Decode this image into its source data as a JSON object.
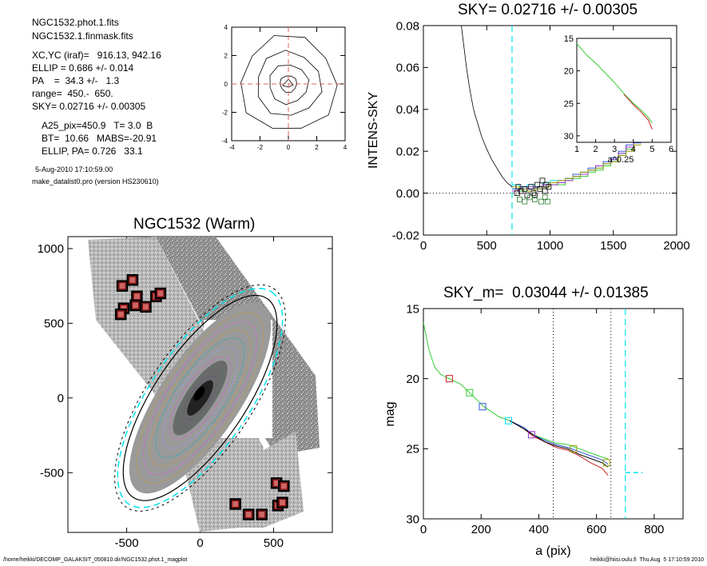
{
  "info": {
    "lines": [
      "NGC1532.phot.1.fits",
      "NGC1532.1.finmask.fits",
      "XC,YC (iraf)=   916.13, 942.16",
      "ELLIP = 0.686 +/- 0.014",
      "PA    =  34.3 +/-   1.3",
      "range=  450.-  650.",
      "SKY= 0.02716 +/- 0.00305",
      "A25_pix=450.9   T= 3.0  B",
      "BT=  10.66   MABS=-20.91",
      "ELLIP, PA= 0.726   33.1"
    ],
    "timestamp": "5-Aug-2010 17:10:59.00",
    "program": "make_datalist0.pro (version HS230610)"
  },
  "footer": {
    "left": "/home/heikki/DECOMP_GALAKSIT_050810.dir/NGC1532.phot.1_magplot",
    "right": "heikki@hiisi.oulu.fi  Thu Aug  5 17:10:59 2010"
  },
  "colors": {
    "cyan": "#00e5ee",
    "red": "#cc2020",
    "green": "#33cc33",
    "blue": "#3355dd",
    "purple": "#9933cc",
    "olive": "#999900",
    "maskbox": "#8b0000"
  },
  "chart_data": [
    {
      "id": "contour",
      "type": "contour",
      "xlim": [
        -4,
        4
      ],
      "ylim": [
        -4,
        4
      ],
      "xticks": [
        "-4",
        "-2",
        "0",
        "2",
        "4"
      ],
      "yticks": [
        "-4",
        "-2",
        "0",
        "2",
        "4"
      ],
      "contour_radii": [
        0.6,
        1.4,
        2.3,
        3.4
      ]
    },
    {
      "id": "sky",
      "type": "line",
      "title": "SKY= 0.02716 +/- 0.00305",
      "ylabel": "INTENS-SKY",
      "xlim": [
        0,
        2000
      ],
      "ylim": [
        -0.02,
        0.08
      ],
      "xticks": [
        "0",
        "500",
        "1000",
        "1500",
        "2000"
      ],
      "yticks": [
        "-0.02",
        "0.00",
        "0.02",
        "0.04",
        "0.06",
        "0.08"
      ],
      "vline_x": 700,
      "profile": [
        [
          300,
          0.08
        ],
        [
          320,
          0.07
        ],
        [
          340,
          0.06
        ],
        [
          360,
          0.052
        ],
        [
          380,
          0.045
        ],
        [
          400,
          0.039
        ],
        [
          430,
          0.033
        ],
        [
          460,
          0.027
        ],
        [
          500,
          0.021
        ],
        [
          540,
          0.016
        ],
        [
          580,
          0.012
        ],
        [
          620,
          0.008
        ],
        [
          660,
          0.005
        ],
        [
          700,
          0.003
        ]
      ],
      "steps_x": [
        700,
        760,
        820,
        880,
        940,
        1000,
        1060,
        1120,
        1180,
        1240,
        1300,
        1360,
        1420,
        1480,
        1540,
        1600,
        1660,
        1720
      ],
      "steps": [
        {
          "color": "#00e5ee",
          "y": [
            0.004,
            0.003,
            0.004,
            0.003,
            0.005,
            0.006,
            0.005,
            0.007,
            0.008,
            0.009,
            0.011,
            0.012,
            0.014,
            0.016,
            0.019,
            0.022,
            0.026
          ]
        },
        {
          "color": "#33cc33",
          "y": [
            0.002,
            0.001,
            0.002,
            0.002,
            0.003,
            0.004,
            0.004,
            0.006,
            0.007,
            0.008,
            0.01,
            0.011,
            0.013,
            0.015,
            0.018,
            0.021,
            0.028
          ]
        },
        {
          "color": "#3355dd",
          "y": [
            0.002,
            0.003,
            0.002,
            0.003,
            0.004,
            0.005,
            0.006,
            0.007,
            0.009,
            0.01,
            0.012,
            0.013,
            0.015,
            0.017,
            0.02,
            0.023,
            0.024
          ]
        },
        {
          "color": "#9933cc",
          "y": [
            0.001,
            0.002,
            0.003,
            0.002,
            0.004,
            0.004,
            0.005,
            0.006,
            0.008,
            0.009,
            0.011,
            0.013,
            0.014,
            0.016,
            0.019,
            0.022,
            0.025
          ]
        },
        {
          "color": "#999900",
          "y": [
            0.003,
            0.002,
            0.001,
            0.002,
            0.003,
            0.005,
            0.006,
            0.007,
            0.008,
            0.01,
            0.011,
            0.012,
            0.014,
            0.015,
            0.018,
            0.02,
            0.023
          ]
        }
      ],
      "black_points": [
        [
          740,
          0.0
        ],
        [
          770,
          0.001
        ],
        [
          800,
          0.002
        ],
        [
          820,
          -0.001
        ],
        [
          850,
          0.003
        ],
        [
          870,
          0.0
        ],
        [
          900,
          0.004
        ],
        [
          920,
          0.002
        ],
        [
          940,
          0.006
        ],
        [
          960,
          0.001
        ],
        [
          990,
          0.003
        ],
        [
          750,
          0.003
        ],
        [
          880,
          -0.001
        ],
        [
          970,
          0.004
        ]
      ],
      "green_points": [
        [
          760,
          -0.003
        ],
        [
          800,
          -0.004
        ],
        [
          840,
          -0.002
        ],
        [
          880,
          -0.003
        ],
        [
          930,
          -0.004
        ],
        [
          980,
          -0.004
        ],
        [
          960,
          -0.002
        ]
      ],
      "inset": {
        "xlabel": "a^0.25",
        "xlim": [
          1,
          6
        ],
        "ylim": [
          15,
          31
        ],
        "xticks": [
          "1",
          "2",
          "3",
          "4",
          "5",
          "6"
        ],
        "yticks": [
          "15",
          "20",
          "25",
          "30"
        ],
        "curves": [
          {
            "color": "#33cc33",
            "points": [
              [
                1.0,
                15.8
              ],
              [
                1.5,
                17.5
              ],
              [
                2.0,
                18.8
              ],
              [
                2.5,
                20.3
              ],
              [
                3.0,
                21.8
              ],
              [
                3.5,
                23.5
              ],
              [
                4.0,
                25.0
              ],
              [
                4.4,
                26.0
              ],
              [
                4.8,
                27.2
              ],
              [
                5.0,
                28.0
              ]
            ]
          },
          {
            "color": "#cc2020",
            "points": [
              [
                3.5,
                23.6
              ],
              [
                4.0,
                25.2
              ],
              [
                4.4,
                26.3
              ],
              [
                4.8,
                27.6
              ],
              [
                5.0,
                29.0
              ]
            ]
          }
        ]
      }
    },
    {
      "id": "image",
      "type": "image",
      "title": "NGC1532 (Warm)",
      "xlim": [
        -900,
        900
      ],
      "ylim": [
        -900,
        1080
      ],
      "xticks": [
        "-500",
        "0",
        "500"
      ],
      "yticks": [
        "-500",
        "0",
        "500",
        "1000"
      ],
      "mask_boxes": [
        [
          -530,
          750
        ],
        [
          -460,
          790
        ],
        [
          -520,
          600
        ],
        [
          -540,
          560
        ],
        [
          -430,
          680
        ],
        [
          -440,
          620
        ],
        [
          -300,
          680
        ],
        [
          -270,
          700
        ],
        [
          -370,
          610
        ],
        [
          520,
          -570
        ],
        [
          570,
          -590
        ],
        [
          530,
          -720
        ],
        [
          560,
          -700
        ],
        [
          240,
          -710
        ],
        [
          330,
          -780
        ],
        [
          420,
          -780
        ]
      ]
    },
    {
      "id": "mag",
      "type": "line",
      "title": "SKY_m=  0.03044 +/- 0.01385",
      "xlabel": "a (pix)",
      "ylabel": "mag",
      "xlim": [
        0,
        900
      ],
      "ylim": [
        15,
        30
      ],
      "xticks": [
        "0",
        "200",
        "400",
        "600",
        "800"
      ],
      "yticks": [
        "15",
        "20",
        "25",
        "30"
      ],
      "vlines_dotted": [
        450,
        650
      ],
      "vline_dashed": 700,
      "sky_level_dashed": [
        [
          700,
          26.7
        ],
        [
          760,
          26.7
        ]
      ],
      "curves": [
        {
          "color": "#33cc33",
          "points": [
            [
              0,
              16.0
            ],
            [
              20,
              18.0
            ],
            [
              40,
              19.2
            ],
            [
              60,
              19.7
            ],
            [
              90,
              20.0
            ],
            [
              130,
              20.4
            ],
            [
              160,
              21.0
            ],
            [
              210,
              22.0
            ],
            [
              260,
              22.7
            ],
            [
              300,
              23.0
            ],
            [
              350,
              23.5
            ],
            [
              380,
              24.0
            ],
            [
              420,
              24.3
            ],
            [
              460,
              24.6
            ],
            [
              500,
              24.7
            ],
            [
              540,
              25.0
            ],
            [
              580,
              25.3
            ],
            [
              620,
              25.6
            ],
            [
              640,
              25.7
            ]
          ]
        },
        {
          "color": "#cc2020",
          "points": [
            [
              300,
              23.0
            ],
            [
              350,
              23.6
            ],
            [
              380,
              24.1
            ],
            [
              420,
              24.5
            ],
            [
              460,
              24.9
            ],
            [
              500,
              25.1
            ],
            [
              540,
              25.5
            ],
            [
              580,
              26.0
            ],
            [
              620,
              26.4
            ],
            [
              640,
              26.9
            ]
          ]
        },
        {
          "color": "#3355dd",
          "points": [
            [
              300,
              23.0
            ],
            [
              350,
              23.5
            ],
            [
              380,
              24.0
            ],
            [
              420,
              24.4
            ],
            [
              460,
              24.7
            ],
            [
              500,
              24.9
            ],
            [
              540,
              25.2
            ],
            [
              580,
              25.5
            ],
            [
              620,
              25.8
            ],
            [
              640,
              26.1
            ]
          ]
        },
        {
          "color": "#000000",
          "points": [
            [
              300,
              23.0
            ],
            [
              350,
              23.6
            ],
            [
              380,
              24.0
            ],
            [
              420,
              24.5
            ],
            [
              460,
              24.8
            ],
            [
              500,
              25.0
            ],
            [
              540,
              25.4
            ],
            [
              580,
              25.7
            ],
            [
              620,
              26.0
            ],
            [
              640,
              26.3
            ]
          ]
        }
      ],
      "markers": [
        {
          "color": "#cc2020",
          "x": 90,
          "y": 20.0
        },
        {
          "color": "#33cc33",
          "x": 160,
          "y": 21.0
        },
        {
          "color": "#3355dd",
          "x": 205,
          "y": 22.0
        },
        {
          "color": "#00e5ee",
          "x": 295,
          "y": 23.0
        },
        {
          "color": "#9933cc",
          "x": 375,
          "y": 24.0
        },
        {
          "color": "#999900",
          "x": 520,
          "y": 25.0
        },
        {
          "color": "#999900",
          "x": 635,
          "y": 26.0
        }
      ]
    }
  ]
}
